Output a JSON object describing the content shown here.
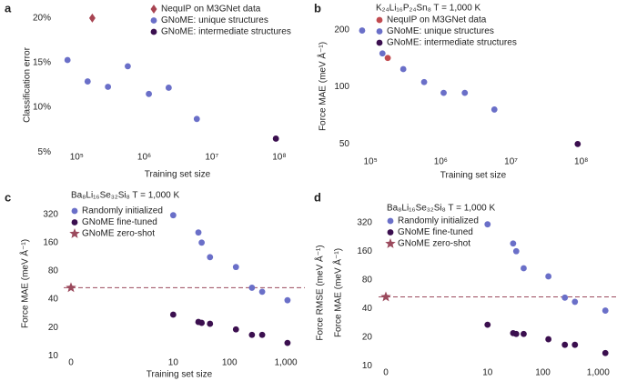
{
  "chart_data": [
    {
      "type": "scatter",
      "label": "a",
      "xlabel": "Training set size",
      "ylabel": "Classification error",
      "xscale": "log",
      "yscale": "linear",
      "xlim": [
        50000,
        150000000
      ],
      "ylim": [
        4,
        21
      ],
      "xticks": [
        {
          "value": 100000,
          "label": "10⁵"
        },
        {
          "value": 1000000,
          "label": "10⁶"
        },
        {
          "value": 10000000,
          "label": "10⁷"
        },
        {
          "value": 100000000,
          "label": "10⁸"
        }
      ],
      "yticks": [
        {
          "value": 5,
          "label": "5%"
        },
        {
          "value": 10,
          "label": "10%"
        },
        {
          "value": 15,
          "label": "15%"
        },
        {
          "value": 20,
          "label": "20%"
        }
      ],
      "series": [
        {
          "name": "NequIP on M3GNet data",
          "color": "#a84452",
          "marker": "diamond",
          "x": [
            170000
          ],
          "y": [
            20
          ]
        },
        {
          "name": "GNoME: unique structures",
          "color": "#6a6fc8",
          "marker": "circle",
          "x": [
            73000,
            145000,
            290000,
            570000,
            1170000,
            2300000,
            6000000
          ],
          "y": [
            15.3,
            12.9,
            12.3,
            14.6,
            11.5,
            12.2,
            8.7
          ]
        },
        {
          "name": "GNoME: intermediate structures",
          "color": "#3b0f4f",
          "marker": "circle",
          "x": [
            89000000
          ],
          "y": [
            6.5
          ]
        }
      ]
    },
    {
      "type": "scatter",
      "label": "b",
      "title": "K₂₄Li₁₆P₂₄Sn₈ T = 1,000 K",
      "xlabel": "Training set size",
      "ylabel": "Force MAE (meV Å⁻¹)",
      "xscale": "log",
      "yscale": "log",
      "xlim": [
        60000,
        140000000
      ],
      "ylim": [
        44,
        230
      ],
      "xticks": [
        {
          "value": 100000,
          "label": "10⁵"
        },
        {
          "value": 1000000,
          "label": "10⁶"
        },
        {
          "value": 10000000,
          "label": "10⁷"
        },
        {
          "value": 100000000,
          "label": "10⁸"
        }
      ],
      "yticks": [
        50,
        100,
        200
      ],
      "series": [
        {
          "name": "NequIP on M3GNet data",
          "color": "#c14a4f",
          "marker": "circle",
          "x": [
            176000
          ],
          "y": [
            142
          ]
        },
        {
          "name": "GNoME: unique structures",
          "color": "#6a6fc8",
          "marker": "circle",
          "x": [
            76000,
            148000,
            293000,
            580000,
            1100000,
            2200000,
            5800000
          ],
          "y": [
            198,
            150,
            124,
            106,
            93,
            93,
            76
          ]
        },
        {
          "name": "GNoME: intermediate structures",
          "color": "#3b0f4f",
          "marker": "circle",
          "x": [
            89000000
          ],
          "y": [
            50
          ]
        }
      ]
    },
    {
      "type": "scatter",
      "label": "c",
      "title": "Ba₈Li₁₆Se₃₂Si₈ T = 1,000 K",
      "xlabel": "Training set size",
      "ylabel": "Force MAE (meV Å⁻¹)",
      "xscale": "log",
      "yscale": "log",
      "xlim": [
        3,
        1500
      ],
      "ylim": [
        9,
        380
      ],
      "xticks": [
        0,
        10,
        100,
        {
          "value": 1000,
          "label": "1,000"
        }
      ],
      "yticks": [
        10,
        20,
        40,
        80,
        160,
        320
      ],
      "hline": 53,
      "hline_color": "#9b4a5d",
      "series": [
        {
          "name": "Randomly initialized",
          "color": "#6a6fc8",
          "marker": "circle",
          "x": [
            10,
            28,
            32,
            45,
            130,
            250,
            380,
            1070
          ],
          "y": [
            313,
            205,
            160,
            112,
            88,
            53,
            48,
            39
          ]
        },
        {
          "name": "GNoME fine-tuned",
          "color": "#3b0f4f",
          "marker": "circle",
          "x": [
            10,
            28,
            32,
            45,
            130,
            250,
            380,
            1070
          ],
          "y": [
            27.4,
            22.9,
            22.4,
            21.9,
            19.1,
            16.7,
            16.7,
            13.7
          ]
        },
        {
          "name": "GNoME zero-shot",
          "color": "#9b4a5d",
          "marker": "star",
          "x": [
            0
          ],
          "y": [
            53
          ]
        }
      ]
    },
    {
      "type": "scatter",
      "label": "d",
      "title": "Ba₈Li₁₆Se₃₂Si₈ T = 1,000 K",
      "ylabel": "Force RMSE (meV Å⁻¹)",
      "ylabel_2": "Force MAE (meV Å⁻¹)",
      "xscale": "log",
      "yscale": "log",
      "xlim": [
        3,
        1500
      ],
      "ylim": [
        9,
        380
      ],
      "xticks": [
        0,
        10,
        100,
        {
          "value": 1000,
          "label": "1,000"
        }
      ],
      "yticks": [
        10,
        20,
        40,
        80,
        160,
        320
      ],
      "hline": 53,
      "hline_color": "#9b4a5d",
      "series": [
        {
          "name": "Randomly initialized",
          "color": "#6a6fc8",
          "marker": "circle",
          "x": [
            10,
            29,
            33,
            45,
            126,
            250,
            380,
            1350
          ],
          "y": [
            307,
            193,
            160,
            106,
            87,
            52,
            47,
            38
          ]
        },
        {
          "name": "GNoME fine-tuned",
          "color": "#3b0f4f",
          "marker": "circle",
          "x": [
            10,
            29,
            33,
            45,
            126,
            250,
            380,
            1350
          ],
          "y": [
            27,
            22,
            21.6,
            21.6,
            19,
            16.6,
            16.6,
            13.6
          ]
        },
        {
          "name": "GNoME zero-shot",
          "color": "#9b4a5d",
          "marker": "star",
          "x": [
            0
          ],
          "y": [
            53
          ]
        }
      ]
    }
  ]
}
